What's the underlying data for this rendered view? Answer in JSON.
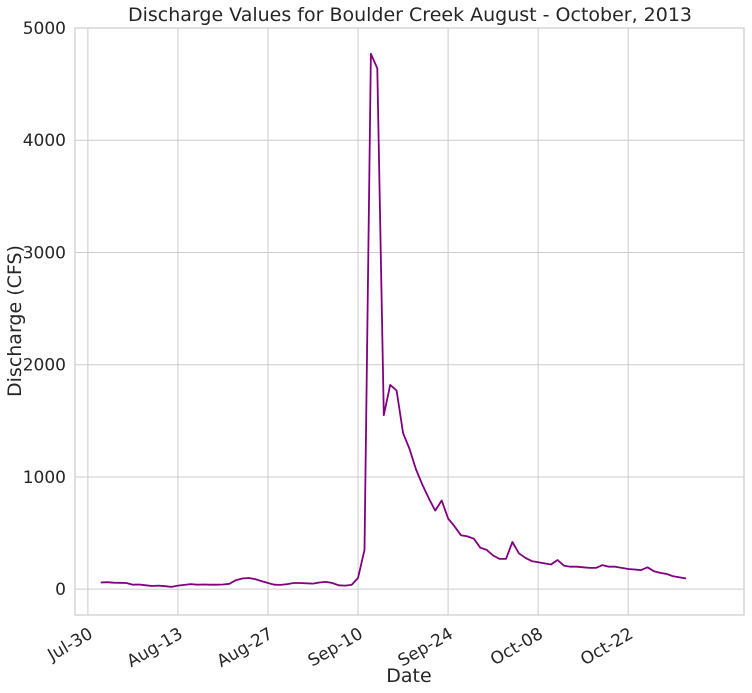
{
  "chart_data": {
    "type": "line",
    "title": "Discharge Values for Boulder Creek August - October, 2013",
    "xlabel": "Date",
    "ylabel": "Discharge (CFS)",
    "grid": true,
    "line_color": "#800080",
    "xlim": [
      "2013-07-28",
      "2013-11-09"
    ],
    "ylim": [
      -230,
      5000
    ],
    "x_ticks": [
      "Jul-30",
      "Aug-13",
      "Aug-27",
      "Sep-10",
      "Sep-24",
      "Oct-08",
      "Oct-22"
    ],
    "x_tick_dates": [
      "2013-07-30",
      "2013-08-13",
      "2013-08-27",
      "2013-09-10",
      "2013-09-24",
      "2013-10-08",
      "2013-10-22"
    ],
    "y_ticks": [
      0,
      1000,
      2000,
      3000,
      4000,
      5000
    ],
    "series": [
      {
        "x": [
          "2013-08-01",
          "2013-08-02",
          "2013-08-03",
          "2013-08-04",
          "2013-08-05",
          "2013-08-06",
          "2013-08-07",
          "2013-08-08",
          "2013-08-09",
          "2013-08-10",
          "2013-08-11",
          "2013-08-12",
          "2013-08-13",
          "2013-08-14",
          "2013-08-15",
          "2013-08-16",
          "2013-08-17",
          "2013-08-18",
          "2013-08-19",
          "2013-08-20",
          "2013-08-21",
          "2013-08-22",
          "2013-08-23",
          "2013-08-24",
          "2013-08-25",
          "2013-08-26",
          "2013-08-27",
          "2013-08-28",
          "2013-08-29",
          "2013-08-30",
          "2013-08-31",
          "2013-09-01",
          "2013-09-02",
          "2013-09-03",
          "2013-09-04",
          "2013-09-05",
          "2013-09-06",
          "2013-09-07",
          "2013-09-08",
          "2013-09-09",
          "2013-09-10",
          "2013-09-11",
          "2013-09-12",
          "2013-09-13",
          "2013-09-14",
          "2013-09-15",
          "2013-09-16",
          "2013-09-17",
          "2013-09-18",
          "2013-09-19",
          "2013-09-20",
          "2013-09-21",
          "2013-09-22",
          "2013-09-23",
          "2013-09-24",
          "2013-09-25",
          "2013-09-26",
          "2013-09-27",
          "2013-09-28",
          "2013-09-29",
          "2013-09-30",
          "2013-10-01",
          "2013-10-02",
          "2013-10-03",
          "2013-10-04",
          "2013-10-05",
          "2013-10-06",
          "2013-10-07",
          "2013-10-08",
          "2013-10-09",
          "2013-10-10",
          "2013-10-11",
          "2013-10-12",
          "2013-10-13",
          "2013-10-14",
          "2013-10-15",
          "2013-10-16",
          "2013-10-17",
          "2013-10-18",
          "2013-10-19",
          "2013-10-20",
          "2013-10-21",
          "2013-10-22",
          "2013-10-23",
          "2013-10-24",
          "2013-10-25",
          "2013-10-26",
          "2013-10-27",
          "2013-10-28",
          "2013-10-29",
          "2013-10-30",
          "2013-10-31"
        ],
        "y": [
          60,
          62,
          58,
          57,
          55,
          40,
          42,
          35,
          28,
          32,
          27,
          20,
          32,
          38,
          45,
          40,
          42,
          40,
          40,
          42,
          48,
          80,
          95,
          100,
          90,
          72,
          55,
          40,
          38,
          45,
          55,
          55,
          52,
          50,
          60,
          65,
          55,
          35,
          32,
          38,
          100,
          350,
          4770,
          4640,
          1550,
          1820,
          1770,
          1390,
          1250,
          1070,
          930,
          810,
          700,
          790,
          630,
          560,
          480,
          470,
          450,
          370,
          350,
          300,
          270,
          270,
          420,
          320,
          280,
          250,
          240,
          230,
          220,
          260,
          210,
          200,
          200,
          195,
          190,
          190,
          215,
          200,
          200,
          190,
          180,
          175,
          170,
          195,
          160,
          145,
          135,
          115,
          105,
          95
        ]
      }
    ]
  }
}
